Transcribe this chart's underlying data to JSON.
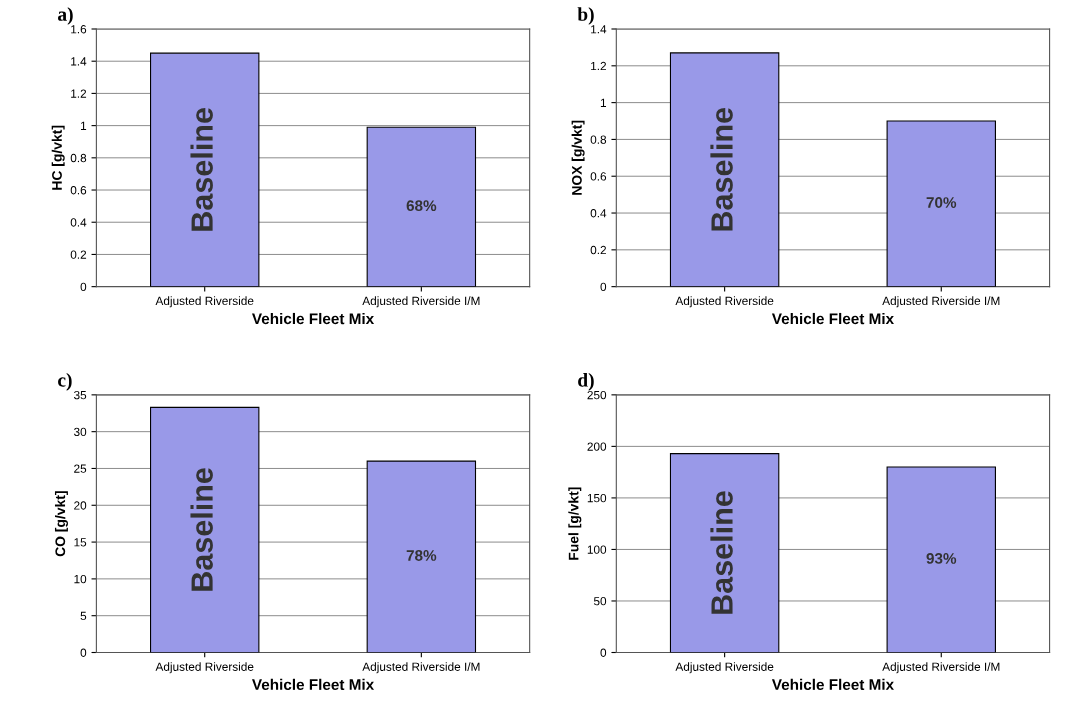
{
  "chart_data": [
    {
      "type": "bar",
      "title": "a)",
      "categories": [
        "Adjusted Riverside",
        "Adjusted Riverside I/M"
      ],
      "values": [
        1.45,
        0.99
      ],
      "color": "#9999e8",
      "xlabel": "Vehicle Fleet Mix",
      "ylabel": "HC [g/vkt]",
      "ylim": [
        0,
        1.6
      ],
      "yticks": [
        0,
        0.2,
        0.4,
        0.6,
        0.8,
        1,
        1.2,
        1.4,
        1.6
      ],
      "grid": "y",
      "annotations": [
        "Baseline",
        "68%"
      ]
    },
    {
      "type": "bar",
      "title": "b)",
      "categories": [
        "Adjusted Riverside",
        "Adjusted Riverside I/M"
      ],
      "values": [
        1.27,
        0.9
      ],
      "color": "#9999e8",
      "xlabel": "Vehicle Fleet Mix",
      "ylabel": "NOX [g/vkt]",
      "ylim": [
        0,
        1.4
      ],
      "yticks": [
        0,
        0.2,
        0.4,
        0.6,
        0.8,
        1,
        1.2,
        1.4
      ],
      "grid": "y",
      "annotations": [
        "Baseline",
        "70%"
      ]
    },
    {
      "type": "bar",
      "title": "c)",
      "categories": [
        "Adjusted Riverside",
        "Adjusted Riverside I/M"
      ],
      "values": [
        33.3,
        26
      ],
      "color": "#9999e8",
      "xlabel": "Vehicle Fleet Mix",
      "ylabel": "CO [g/vkt]",
      "ylim": [
        0,
        35
      ],
      "yticks": [
        0,
        5,
        10,
        15,
        20,
        25,
        30,
        35
      ],
      "grid": "y",
      "annotations": [
        "Baseline",
        "78%"
      ]
    },
    {
      "type": "bar",
      "title": "d)",
      "categories": [
        "Adjusted Riverside",
        "Adjusted Riverside I/M"
      ],
      "values": [
        193,
        180
      ],
      "color": "#9999e8",
      "xlabel": "Vehicle Fleet Mix",
      "ylabel": "Fuel [g/vkt]",
      "ylim": [
        0,
        250
      ],
      "yticks": [
        0,
        50,
        100,
        150,
        200,
        250
      ],
      "grid": "y",
      "annotations": [
        "Baseline",
        "93%"
      ]
    }
  ]
}
